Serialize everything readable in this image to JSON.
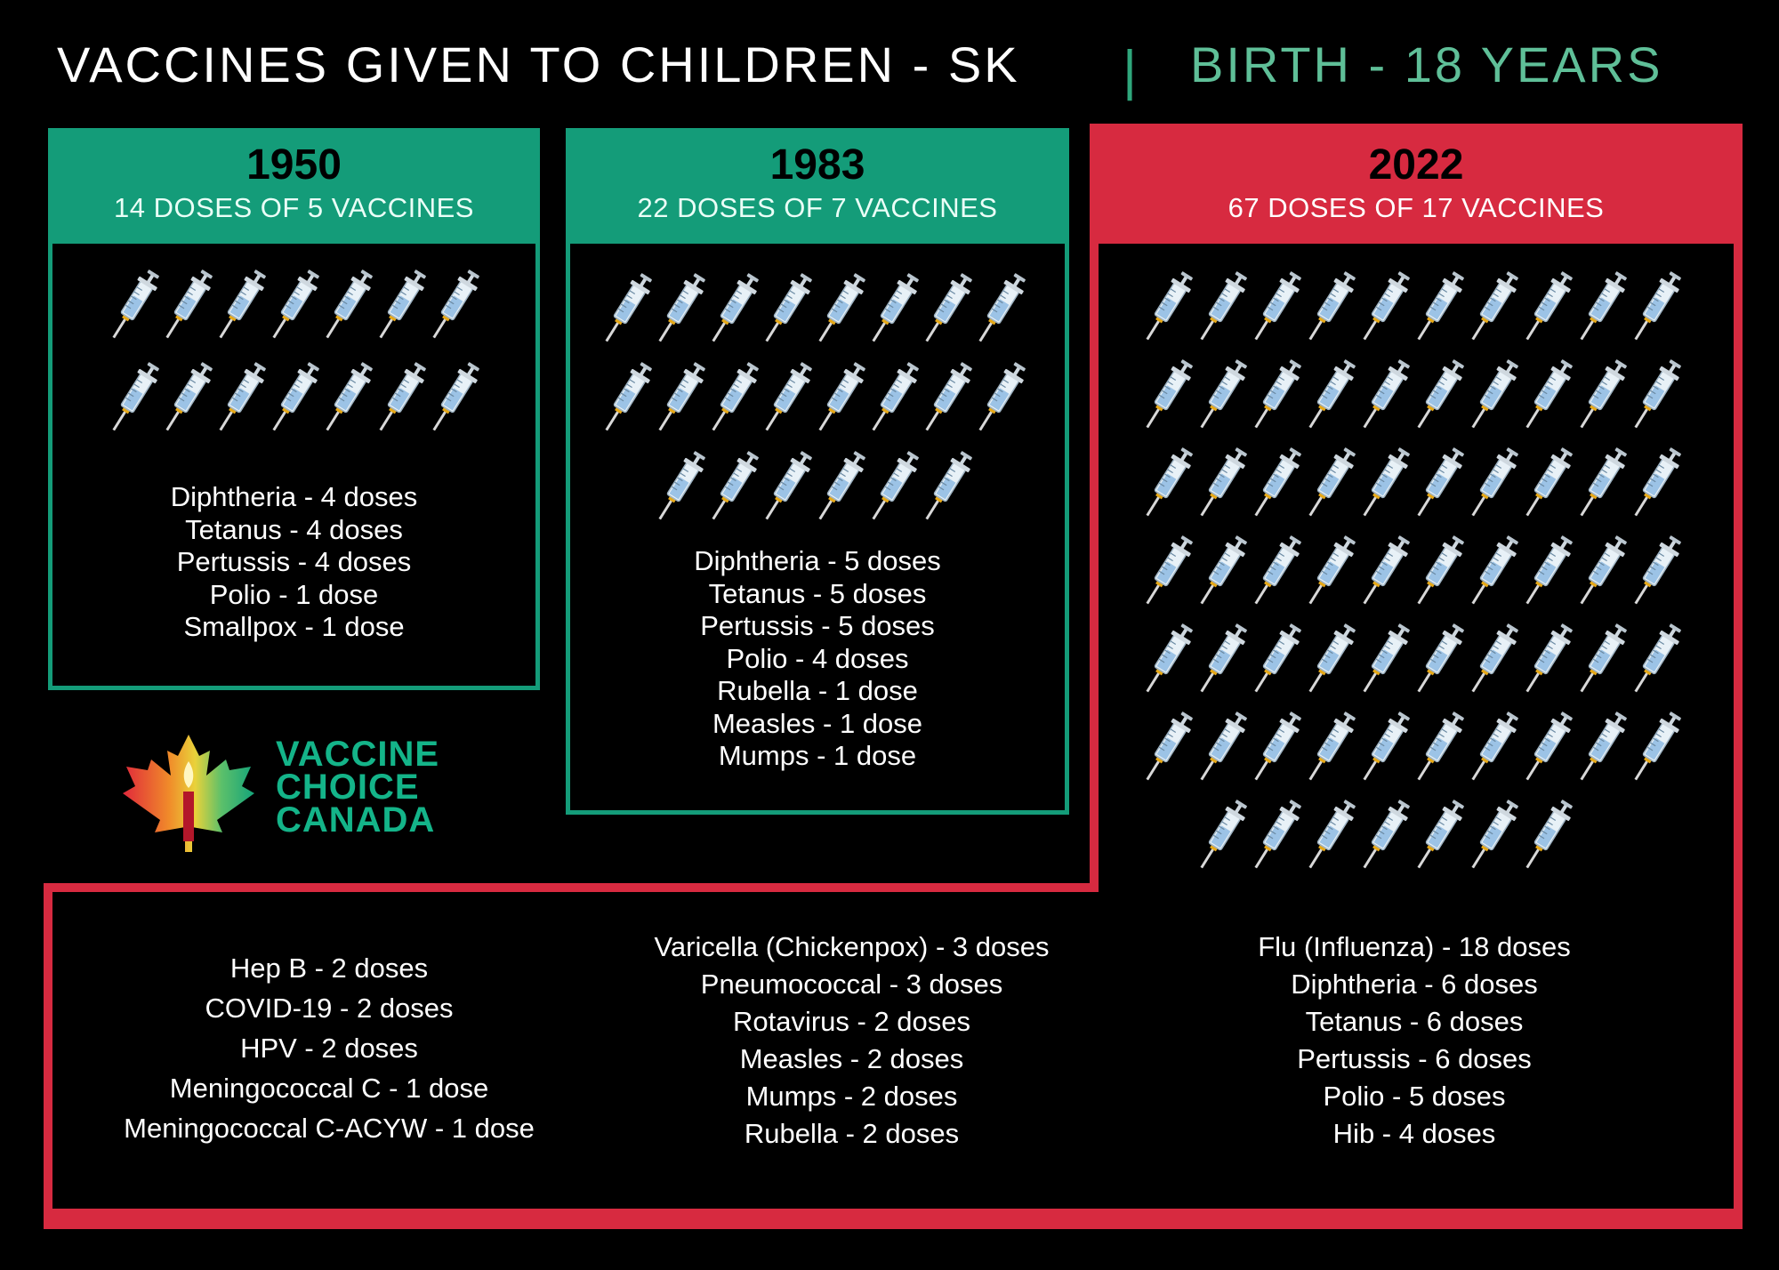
{
  "header": {
    "title": "VACCINES GIVEN TO CHILDREN - SK",
    "separator": "|",
    "range": "BIRTH - 18 YEARS"
  },
  "colors": {
    "green": "#149c79",
    "red": "#d72a40",
    "background": "#000000"
  },
  "panels": [
    {
      "year": "1950",
      "summary": "14 DOSES OF 5 VACCINES",
      "syringe_count": 14,
      "vaccines": [
        "Diphtheria - 4 doses",
        "Tetanus - 4 doses",
        "Pertussis - 4 doses",
        "Polio - 1 dose",
        "Smallpox - 1 dose"
      ]
    },
    {
      "year": "1983",
      "summary": "22 DOSES OF 7 VACCINES",
      "syringe_count": 22,
      "vaccines": [
        "Diphtheria - 5 doses",
        "Tetanus - 5 doses",
        "Pertussis - 5 doses",
        "Polio - 4 doses",
        "Rubella - 1 dose",
        "Measles - 1 dose",
        "Mumps - 1 dose"
      ]
    },
    {
      "year": "2022",
      "summary": "67 DOSES OF 17 VACCINES",
      "syringe_count": 67,
      "vaccine_columns": [
        [
          "Hep B - 2 doses",
          "COVID-19 - 2 doses",
          "HPV - 2 doses",
          "Meningococcal C - 1 dose",
          "Meningococcal C-ACYW - 1 dose"
        ],
        [
          "Varicella (Chickenpox) - 3 doses",
          "Pneumococcal - 3 doses",
          "Rotavirus - 2 doses",
          "Measles - 2 doses",
          "Mumps - 2 doses",
          "Rubella - 2 doses"
        ],
        [
          "Flu (Influenza) - 18 doses",
          "Diphtheria - 6 doses",
          "Tetanus - 6 doses",
          "Pertussis - 6 doses",
          "Polio - 5 doses",
          "Hib - 4 doses"
        ]
      ]
    }
  ],
  "logo": {
    "line1": "VACCINE",
    "line2": "CHOICE",
    "line3": "CANADA",
    "icon": "maple-leaf-candle-icon"
  },
  "syringe_icon": "syringe-icon"
}
